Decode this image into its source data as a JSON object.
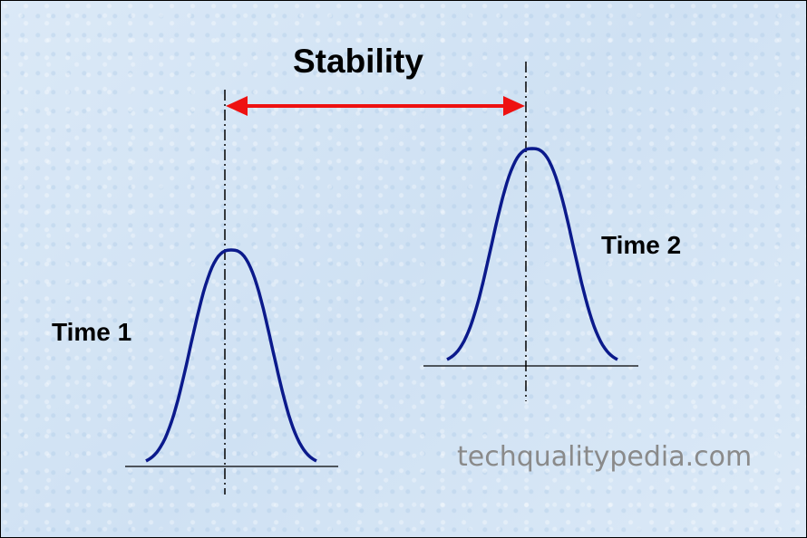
{
  "title": "Stability",
  "time1_label": "Time 1",
  "time2_label": "Time 2",
  "watermark": "techqualitypedia.com",
  "colors": {
    "background": "#d6e6f5",
    "curve": "#0b1a8c",
    "arrow": "#ee1111",
    "axis": "#000000",
    "watermark": "#8a8a8a"
  }
}
